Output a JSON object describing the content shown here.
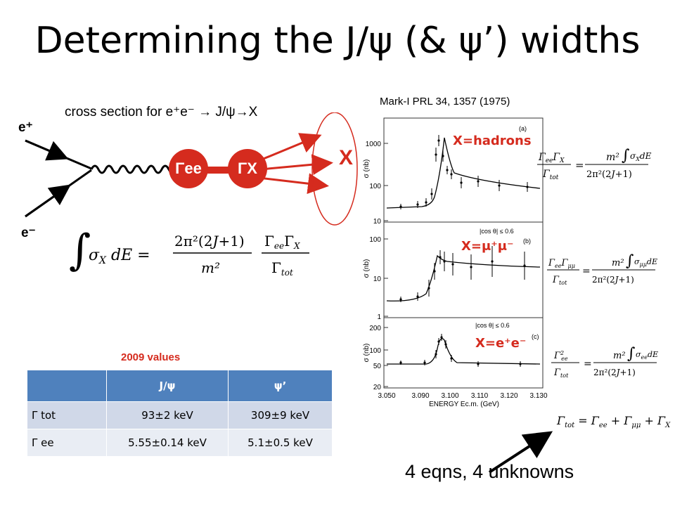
{
  "title": "Determining the J/ψ (& ψ’) widths",
  "diagram": {
    "subtitle": "cross section for e⁺e⁻ → J/ψ→X",
    "eplus": "e⁺",
    "eminus": "e⁻",
    "gamma_ee": "Γee",
    "gamma_x": "ΓX",
    "final_state": "X"
  },
  "integral_formula": "∫σX dE = 2π²(2J+1)/m² · ΓeeΓX/Γtot",
  "plot": {
    "reference": "Mark-I PRL 34, 1357 (1975)",
    "panels": [
      {
        "process": "X=hadrons",
        "cut": "(a)"
      },
      {
        "process": "X=μ⁺μ⁻",
        "cut": "|cos θ| ≤ 0.6",
        "panel": "(b)"
      },
      {
        "process": "X=e⁺e⁻",
        "cut": "|cos θ| ≤ 0.6",
        "panel": "(c)"
      }
    ],
    "ylabel": "σ (nb)",
    "xlabel": "ENERGY Ec.m. (GeV)",
    "x_ticks": [
      "3.050",
      "3.090",
      "3.100",
      "3.110",
      "3.120",
      "3.130"
    ],
    "y_ticks_a": [
      "1000",
      "100",
      "10"
    ],
    "y_ticks_b": [
      "100",
      "10",
      "1"
    ],
    "y_ticks_c": [
      "200",
      "100",
      "50",
      "20"
    ]
  },
  "equations": {
    "hadrons": "ΓeeΓX/Γtot = m²/(2π²(2J+1)) ∫σX dE",
    "mumu": "ΓeeΓμμ/Γtot = m²/(2π²(2J+1)) ∫σμμ dE",
    "ee": "Γee²/Γtot = m²/(2π²(2J+1)) ∫σee dE",
    "total": "Γtot = Γee + Γμμ + ΓX"
  },
  "table": {
    "year_label": "2009 values",
    "headers": [
      "",
      "J/ψ",
      "ψ’"
    ],
    "rows": [
      {
        "label": "Γ tot",
        "jpsi": "93±2 keV",
        "psiprime": "309±9 keV"
      },
      {
        "label": "Γ ee",
        "jpsi": "5.55±0.14 keV",
        "psiprime": "5.1±0.5 keV"
      }
    ]
  },
  "summary": "4 eqns, 4 unknowns",
  "colors": {
    "accent_red": "#d52b1e",
    "table_header": "#4f81bd",
    "row1": "#d0d8e8",
    "row2": "#e9edf4"
  }
}
